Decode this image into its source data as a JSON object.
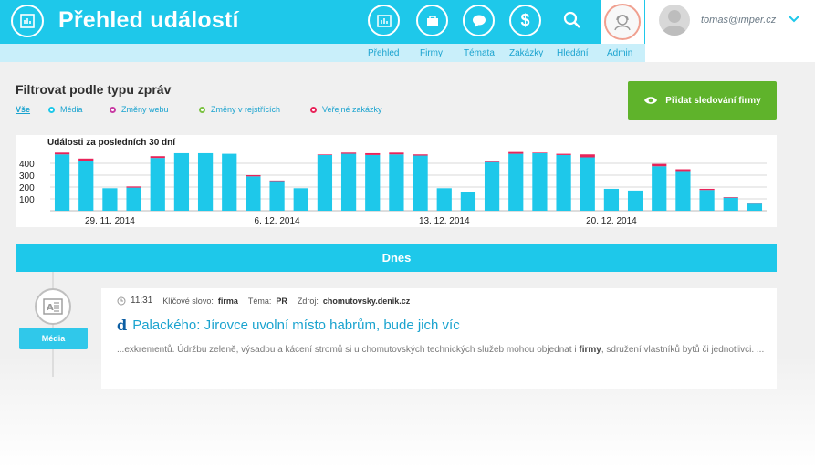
{
  "header": {
    "title": "Přehled událostí",
    "user_email": "tomas@imper.cz",
    "nav": [
      {
        "label": "Přehled",
        "icon": "overview-icon"
      },
      {
        "label": "Firmy",
        "icon": "companies-icon"
      },
      {
        "label": "Témata",
        "icon": "topics-icon"
      },
      {
        "label": "Zakázky",
        "icon": "dollar-icon"
      },
      {
        "label": "Hledání",
        "icon": "search-icon"
      },
      {
        "label": "Admin",
        "icon": "admin-icon"
      }
    ]
  },
  "filters": {
    "title": "Filtrovat podle typu zpráv",
    "all_label": "Vše",
    "items": [
      {
        "label": "Média",
        "color": "#1ec8ea"
      },
      {
        "label": "Změny webu",
        "color": "#c83ba3"
      },
      {
        "label": "Změny v rejstřících",
        "color": "#7bc242"
      },
      {
        "label": "Veřejné zakázky",
        "color": "#e8245a"
      }
    ]
  },
  "add_button_label": "Přidat sledování firmy",
  "chart_data": {
    "type": "bar",
    "title": "Události za posledních 30 dní",
    "ylim": [
      0,
      500
    ],
    "yticks": [
      100,
      200,
      300,
      400
    ],
    "xtick_labels": [
      "29. 11. 2014",
      "6. 12. 2014",
      "13. 12. 2014",
      "20. 12. 2014"
    ],
    "xtick_at": [
      2.5,
      9.5,
      16.5,
      23.5
    ],
    "grid": true,
    "series": [
      {
        "color": "#1ec8ea",
        "values": [
          475,
          420,
          190,
          195,
          445,
          485,
          485,
          480,
          290,
          250,
          190,
          470,
          480,
          470,
          475,
          465,
          190,
          160,
          410,
          480,
          485,
          470,
          450,
          185,
          170,
          375,
          335,
          175,
          110,
          60
        ]
      },
      {
        "color": "#e8245a",
        "values": [
          15,
          20,
          0,
          10,
          15,
          0,
          0,
          0,
          10,
          5,
          0,
          5,
          10,
          15,
          15,
          10,
          0,
          0,
          5,
          15,
          5,
          10,
          25,
          0,
          0,
          20,
          15,
          10,
          5,
          5
        ]
      }
    ]
  },
  "today_label": "Dnes",
  "event": {
    "time": "11:31",
    "keyword_label": "Klíčové slovo:",
    "keyword": "firma",
    "topic_label": "Téma:",
    "topic": "PR",
    "source_label": "Zdroj:",
    "source": "chomutovsky.denik.cz",
    "source_mark": "d",
    "title": "Palackého: Jírovce uvolní místo habrům, bude jich víc",
    "snippet_before": "...exkrementů. Údržbu zeleně, výsadbu a kácení stromů si u chomutovských technických služeb mohou objednat i ",
    "snippet_bold": "firmy",
    "snippet_after": ", sdružení vlastníků bytů či jednotlivci. ...",
    "type_label": "Média"
  }
}
